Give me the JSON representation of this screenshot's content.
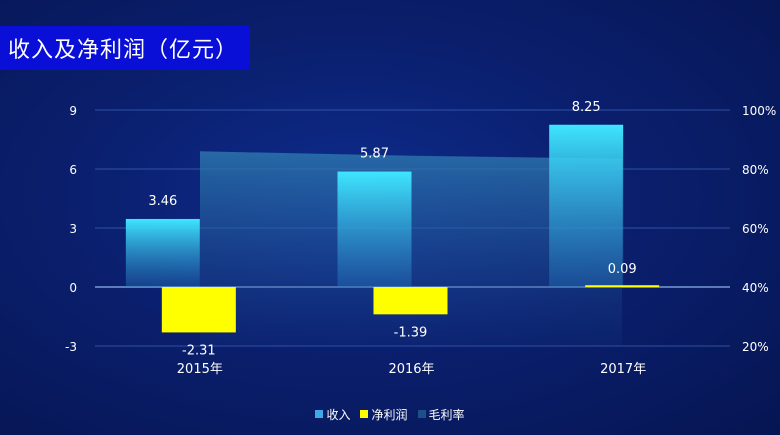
{
  "title": "收入及净利润（亿元）",
  "legend": [
    {
      "label": "收入",
      "color": "#3fa9e8"
    },
    {
      "label": "净利润",
      "color": "#ffff00"
    },
    {
      "label": "毛利率",
      "color": "#1f4f8a"
    }
  ],
  "chart_data": {
    "type": "bar",
    "categories": [
      "2015年",
      "2016年",
      "2017年"
    ],
    "series": [
      {
        "name": "收入",
        "type": "bar",
        "values": [
          3.46,
          5.87,
          8.25
        ],
        "labels": [
          "3.46",
          "5.87",
          "8.25"
        ],
        "color": "#3ee0ff"
      },
      {
        "name": "净利润",
        "type": "bar",
        "values": [
          -2.31,
          -1.39,
          0.09
        ],
        "labels": [
          "-2.31",
          "-1.39",
          "0.09"
        ],
        "color": "#ffff00"
      },
      {
        "name": "毛利率",
        "type": "area",
        "axis": "right",
        "values": [
          86,
          84.5,
          83.5
        ],
        "color": "#2a6aa0"
      }
    ],
    "y_left": {
      "ticks": [
        9,
        6,
        3,
        0,
        -3
      ],
      "tick_labels": [
        "9",
        "6",
        "3",
        "0",
        "-3"
      ],
      "range": [
        -3,
        9
      ]
    },
    "y_right": {
      "ticks": [
        100,
        80,
        60,
        40,
        20
      ],
      "tick_labels": [
        "100%",
        "80%",
        "60%",
        "40%",
        "20%"
      ],
      "range": [
        20,
        100
      ]
    },
    "grid": true,
    "legend_position": "bottom"
  }
}
